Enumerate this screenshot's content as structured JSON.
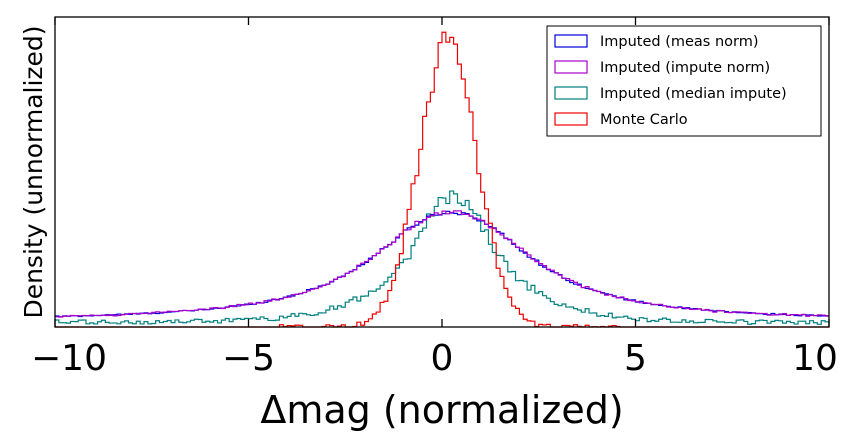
{
  "chart_data": {
    "type": "histogram",
    "xlabel": "Δmag (normalized)",
    "ylabel": "Density (unnormalized)",
    "xlim": [
      -10,
      10
    ],
    "ylim": [
      0,
      1
    ],
    "x_ticks": [
      "−10",
      "−5",
      "0",
      "5",
      "10"
    ],
    "x_tick_values": [
      -10,
      -5,
      0,
      5,
      10
    ],
    "grid": false,
    "legend_position": "upper right",
    "bin_width": 0.1,
    "series": [
      {
        "name": "Imputed (meas norm)",
        "color": "#0000dd",
        "shape": "broad",
        "peak_x": 0.25,
        "peak_density": 0.37,
        "tail_level": 0.02
      },
      {
        "name": "Imputed (impute norm)",
        "color": "#aa00cc",
        "shape": "broad",
        "peak_x": 0.25,
        "peak_density": 0.37,
        "tail_level": 0.02
      },
      {
        "name": "Imputed (median impute)",
        "color": "#008080",
        "shape": "medium",
        "peak_x": 0.3,
        "peak_density": 0.57,
        "tail_level": 0.015
      },
      {
        "name": "Monte Carlo",
        "color": "#ee0000",
        "shape": "narrow",
        "peak_x": 0.15,
        "peak_density": 0.92,
        "tail_level": 0.0
      }
    ]
  }
}
